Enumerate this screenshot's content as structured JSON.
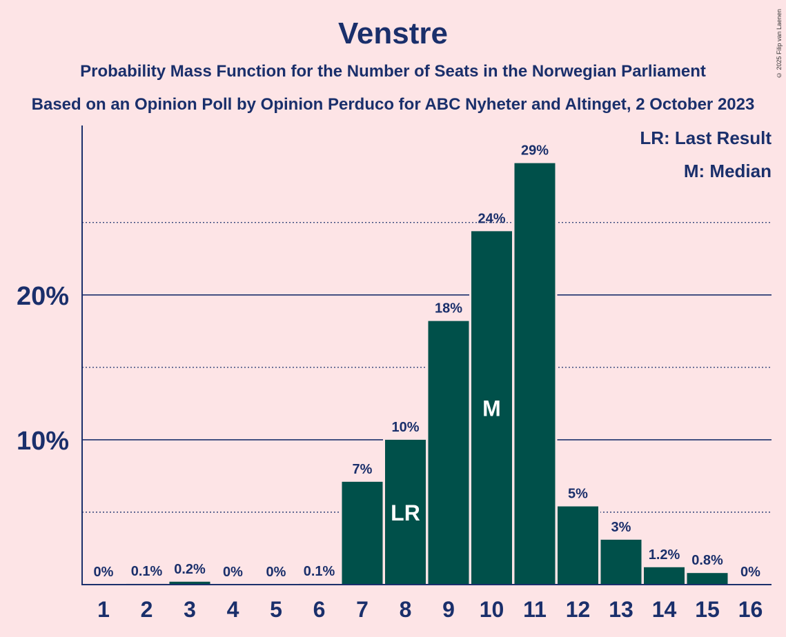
{
  "header": {
    "title": "Venstre",
    "subtitle1": "Probability Mass Function for the Number of Seats in the Norwegian Parliament",
    "subtitle2": "Based on an Opinion Poll by Opinion Perduco for ABC Nyheter and Altinget, 2 October 2023",
    "copyright": "© 2025 Filip van Laenen"
  },
  "legend": {
    "last_result": "LR: Last Result",
    "median": "M: Median"
  },
  "colors": {
    "background": "#fde4e6",
    "bar": "#00504a",
    "text": "#1a2f6b"
  },
  "chart_data": {
    "type": "bar",
    "categories": [
      "1",
      "2",
      "3",
      "4",
      "5",
      "6",
      "7",
      "8",
      "9",
      "10",
      "11",
      "12",
      "13",
      "14",
      "15",
      "16"
    ],
    "values": [
      0,
      0.05,
      0.2,
      0,
      0,
      0.05,
      7.1,
      10.0,
      18.2,
      24.4,
      29.1,
      5.4,
      3.1,
      1.2,
      0.8,
      0
    ],
    "data_labels": [
      "0%",
      "0.1%",
      "0.2%",
      "0%",
      "0%",
      "0.1%",
      "7%",
      "10%",
      "18%",
      "24%",
      "29%",
      "5%",
      "3%",
      "1.2%",
      "0.8%",
      "0%"
    ],
    "yticks": [
      10,
      20
    ],
    "ytick_labels": [
      "10%",
      "20%"
    ],
    "minor_gridlines": [
      5,
      15,
      25
    ],
    "ylim": [
      0,
      31.7
    ],
    "markers": [
      {
        "category": "8",
        "label": "LR"
      },
      {
        "category": "10",
        "label": "M"
      }
    ],
    "legend_position": "top-right"
  }
}
